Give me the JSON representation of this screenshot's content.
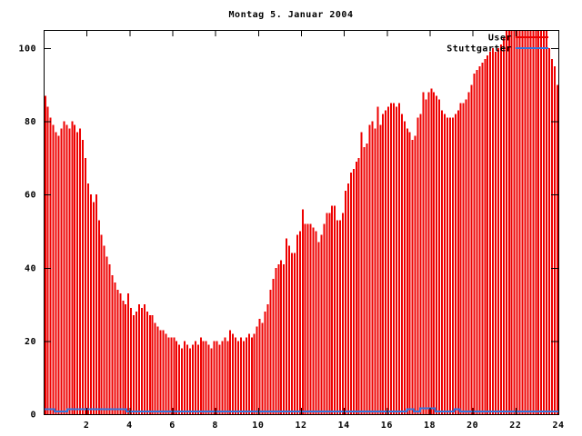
{
  "page": {
    "background": "#ffffff",
    "frame_color": "#000000",
    "text_color": "#000000"
  },
  "chart_data": {
    "type": "bar",
    "title": "Montag 5. Januar 2004",
    "xlabel": "",
    "ylabel": "",
    "xlim": [
      0,
      24
    ],
    "ylim": [
      0,
      104.7
    ],
    "grid": false,
    "x_ticks": [
      2,
      4,
      6,
      8,
      10,
      12,
      14,
      16,
      18,
      20,
      22,
      24
    ],
    "y_ticks": [
      0,
      20,
      40,
      60,
      80,
      100
    ],
    "interval_minutes": 7.5,
    "start_hour": 0,
    "series": [
      {
        "name": "User",
        "type": "bar",
        "color": "#ee0000",
        "values": [
          87,
          84,
          81,
          79,
          77,
          76,
          78,
          80,
          79,
          78,
          80,
          79,
          77,
          78,
          75,
          70,
          63,
          60,
          58,
          60,
          53,
          49,
          46,
          43,
          41,
          38,
          36,
          34,
          33,
          31,
          30,
          33,
          29,
          27,
          28,
          30,
          29,
          30,
          28,
          27,
          27,
          25,
          24,
          23,
          23,
          22,
          21,
          21,
          21,
          20,
          19,
          18,
          20,
          19,
          18,
          19,
          20,
          19,
          21,
          20,
          20,
          19,
          18,
          20,
          20,
          19,
          20,
          21,
          20,
          23,
          22,
          21,
          20,
          21,
          20,
          21,
          22,
          21,
          22,
          24,
          26,
          25,
          28,
          30,
          34,
          37,
          40,
          41,
          42,
          41,
          48,
          46,
          44,
          44,
          49,
          50,
          56,
          52,
          52,
          52,
          51,
          50,
          47,
          49,
          52,
          55,
          55,
          57,
          57,
          53,
          53,
          55,
          61,
          63,
          66,
          67,
          69,
          70,
          77,
          73,
          74,
          79,
          80,
          78,
          84,
          79,
          82,
          83,
          84,
          85,
          85,
          84,
          85,
          82,
          80,
          78,
          77,
          75,
          76,
          81,
          82,
          88,
          86,
          88,
          89,
          88,
          87,
          86,
          83,
          82,
          81,
          81,
          81,
          82,
          83,
          85,
          85,
          86,
          88,
          90,
          93,
          94,
          95,
          96,
          97,
          98,
          99,
          100,
          99,
          100,
          101,
          103,
          105,
          105,
          105,
          105,
          105,
          105,
          105,
          105,
          105,
          105,
          105,
          105,
          105,
          105,
          105,
          105,
          100,
          97,
          95,
          90
        ]
      },
      {
        "name": "Stuttgarter",
        "type": "step-line",
        "color": "#3377dd",
        "segments": [
          [
            0.0,
            0.5,
            1.2
          ],
          [
            0.5,
            1.1,
            0.4
          ],
          [
            1.1,
            3.85,
            1.2
          ],
          [
            3.85,
            16.95,
            0.4
          ],
          [
            16.95,
            17.25,
            1.3
          ],
          [
            17.25,
            17.55,
            0.4
          ],
          [
            17.55,
            18.25,
            1.5
          ],
          [
            18.25,
            19.15,
            0.4
          ],
          [
            19.15,
            19.4,
            1.3
          ],
          [
            19.4,
            24.0,
            0.4
          ]
        ]
      }
    ],
    "legend": {
      "position": "top-right",
      "entries": [
        {
          "label": "User",
          "color": "#ee0000"
        },
        {
          "label": "Stuttgarter",
          "color": "#3377dd"
        }
      ]
    }
  }
}
